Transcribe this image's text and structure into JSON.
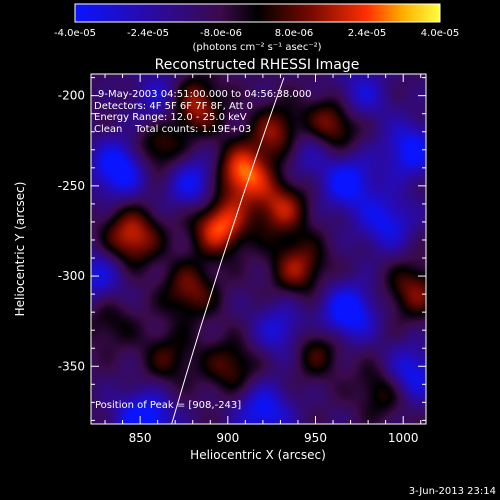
{
  "chart_data": {
    "type": "heatmap",
    "title": "Reconstructed RHESSI Image",
    "xlabel": "Heliocentric X (arcsec)",
    "ylabel": "Heliocentric Y (arcsec)",
    "xlim": [
      822,
      1013
    ],
    "ylim": [
      -382,
      -188
    ],
    "x_ticks": [
      850,
      900,
      950,
      1000
    ],
    "y_ticks": [
      -350,
      -300,
      -250,
      -200
    ],
    "colorbar": {
      "unit_label": "(photons cm⁻² s⁻¹ asec⁻²)",
      "range": [
        -4e-05,
        4e-05
      ],
      "tick_labels": [
        "-4.0e-05",
        "-2.4e-05",
        "-8.0e-06",
        "8.0e-06",
        "2.4e-05",
        "4.0e-05"
      ]
    },
    "annotations": [
      "9-May-2003 04:51:00.000 to 04:56:38.000",
      "Detectors: 4F 5F 6F 7F 8F, Att 0",
      "Energy Range: 12.0 - 25.0 keV",
      "Clean    Total counts: 1.19E+03"
    ],
    "peak_label": "Position of Peak = [908,-243]",
    "bright_sources": [
      {
        "x": 908,
        "y": -243,
        "v": 4e-05
      },
      {
        "x": 930,
        "y": -222,
        "v": 3.5e-05
      },
      {
        "x": 880,
        "y": -205,
        "v": 3.2e-05
      },
      {
        "x": 960,
        "y": -215,
        "v": 2.8e-05
      },
      {
        "x": 860,
        "y": -230,
        "v": 2.2e-05
      },
      {
        "x": 845,
        "y": -278,
        "v": 3.3e-05
      },
      {
        "x": 895,
        "y": -272,
        "v": 3.8e-05
      },
      {
        "x": 930,
        "y": -262,
        "v": 2.8e-05
      },
      {
        "x": 940,
        "y": -295,
        "v": 2.6e-05
      },
      {
        "x": 878,
        "y": -308,
        "v": 2.3e-05
      },
      {
        "x": 902,
        "y": -350,
        "v": 2e-05
      },
      {
        "x": 950,
        "y": -340,
        "v": 1.9e-05
      },
      {
        "x": 990,
        "y": -362,
        "v": 2.3e-05
      },
      {
        "x": 1006,
        "y": -308,
        "v": 2.3e-05
      },
      {
        "x": 866,
        "y": -345,
        "v": 1.6e-05
      },
      {
        "x": 832,
        "y": -325,
        "v": 1.3e-05
      }
    ],
    "dark_sources": [
      {
        "x": 838,
        "y": -240,
        "v": -3.6e-05
      },
      {
        "x": 852,
        "y": -380,
        "v": -3.6e-05
      },
      {
        "x": 968,
        "y": -320,
        "v": -3.5e-05
      },
      {
        "x": 968,
        "y": -248,
        "v": -3e-05
      },
      {
        "x": 1003,
        "y": -355,
        "v": -3.2e-05
      },
      {
        "x": 880,
        "y": -248,
        "v": -2.7e-05
      },
      {
        "x": 940,
        "y": -228,
        "v": -2.5e-05
      },
      {
        "x": 1004,
        "y": -230,
        "v": -2.9e-05
      },
      {
        "x": 990,
        "y": -270,
        "v": -2.5e-05
      },
      {
        "x": 862,
        "y": -202,
        "v": -2.2e-05
      },
      {
        "x": 920,
        "y": -375,
        "v": -2.8e-05
      },
      {
        "x": 930,
        "y": -330,
        "v": -2.2e-05
      },
      {
        "x": 825,
        "y": -300,
        "v": -2.2e-05
      },
      {
        "x": 975,
        "y": -200,
        "v": -2.1e-05
      }
    ],
    "limb_curve": {
      "x0": 868,
      "y0": -382,
      "x1": 932,
      "y1": -190
    }
  },
  "footer": {
    "timestamp": "3-Jun-2013 23:14"
  }
}
